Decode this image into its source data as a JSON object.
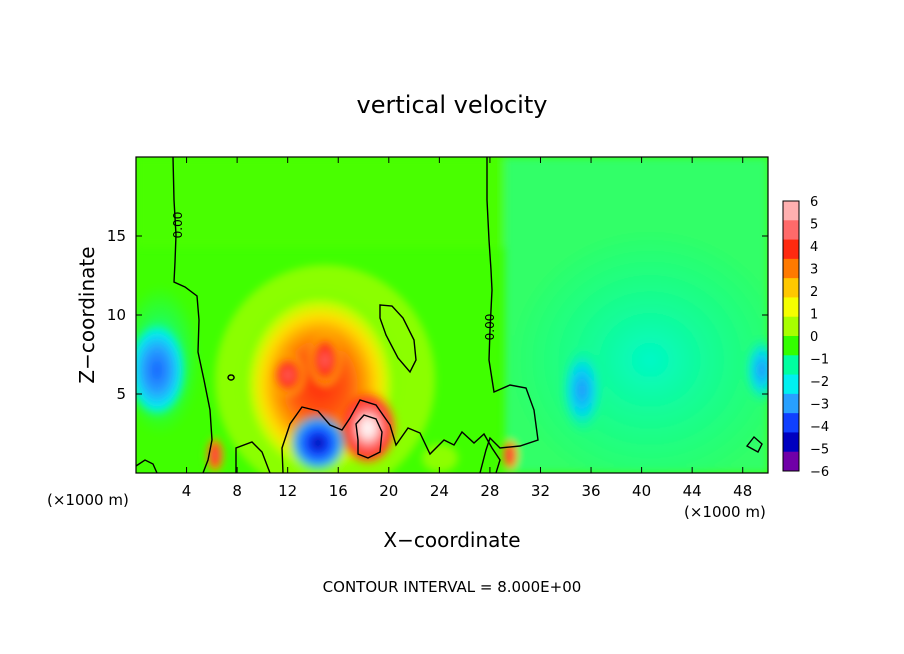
{
  "chart_data": {
    "type": "heatmap",
    "title": "vertical velocity",
    "xlabel": "X−coordinate",
    "ylabel": "Z−coordinate",
    "x_unit_left": "(×1000 m)",
    "x_unit_right": "(×1000 m)",
    "xlim": [
      0,
      50
    ],
    "ylim": [
      0,
      20
    ],
    "xticks": [
      4,
      8,
      12,
      16,
      20,
      24,
      28,
      32,
      36,
      40,
      44,
      48
    ],
    "yticks": [
      5,
      10,
      15
    ],
    "footer": "CONTOUR INTERVAL = 8.000E+00",
    "contour_label": "0.00",
    "colorbar": {
      "levels": [
        "6",
        "5",
        "4",
        "3",
        "2",
        "1",
        "0",
        "−1",
        "−2",
        "−3",
        "−4",
        "−5",
        "−6"
      ],
      "colors": [
        "#ffb0b0",
        "#ff6a6a",
        "#ff2a10",
        "#ff7a00",
        "#ffc800",
        "#f5ff00",
        "#a8ff00",
        "#33ff00",
        "#00ffa0",
        "#00f0f0",
        "#28a0ff",
        "#1040ff",
        "#0000c0",
        "#7000a8"
      ]
    },
    "features": [
      {
        "x": 1.5,
        "z": 6.5,
        "value": -3.5
      },
      {
        "x": 6.5,
        "z": 1.2,
        "value": 5
      },
      {
        "x": 13.5,
        "z": 6.8,
        "value": 4.5
      },
      {
        "x": 15.0,
        "z": 1.8,
        "value": -5
      },
      {
        "x": 18.5,
        "z": 2.5,
        "value": 6
      },
      {
        "x": 29.5,
        "z": 1.2,
        "value": 4
      },
      {
        "x": 34.5,
        "z": 5.0,
        "value": -3
      },
      {
        "x": 48.5,
        "z": 6.5,
        "value": -2
      }
    ]
  }
}
